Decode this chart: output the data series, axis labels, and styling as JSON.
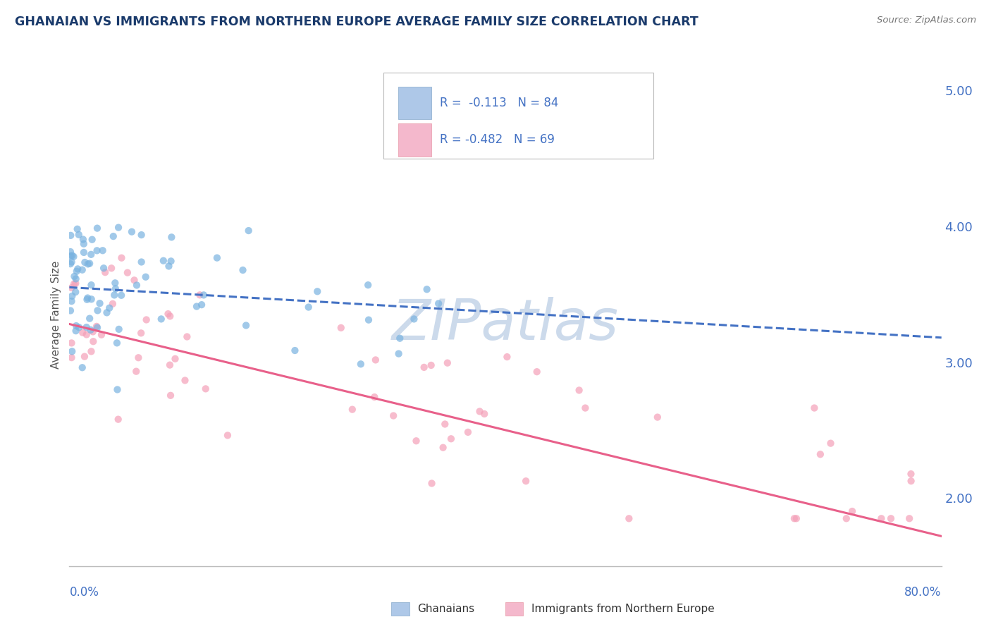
{
  "title": "GHANAIAN VS IMMIGRANTS FROM NORTHERN EUROPE AVERAGE FAMILY SIZE CORRELATION CHART",
  "source_text": "Source: ZipAtlas.com",
  "ylabel": "Average Family Size",
  "watermark": "ZIPatlas",
  "xmin": 0.0,
  "xmax": 80.0,
  "ymin": 1.5,
  "ymax": 5.2,
  "yticks": [
    2.0,
    3.0,
    4.0,
    5.0
  ],
  "series": [
    {
      "name": "Ghanaians",
      "R": -0.113,
      "N": 84,
      "color_scatter": "#7ab3e0",
      "color_line": "#4472c4",
      "line_style": "--"
    },
    {
      "name": "Immigrants from Northern Europe",
      "R": -0.482,
      "N": 69,
      "color_scatter": "#f4a0b8",
      "color_line": "#e8608a",
      "line_style": "-"
    }
  ],
  "trendline_ghanaians": [
    [
      0.0,
      80.0
    ],
    [
      3.55,
      3.18
    ]
  ],
  "trendline_immigrants": [
    [
      0.0,
      80.0
    ],
    [
      3.28,
      1.72
    ]
  ],
  "title_color": "#1a3a6b",
  "axis_label_color": "#4472c4",
  "grid_color": "#d0dce8",
  "watermark_color": "#ccdaeb",
  "background_color": "#ffffff",
  "legend_box_color_blue": "#aec8e8",
  "legend_box_color_pink": "#f4b8cc",
  "source_color": "#777777"
}
